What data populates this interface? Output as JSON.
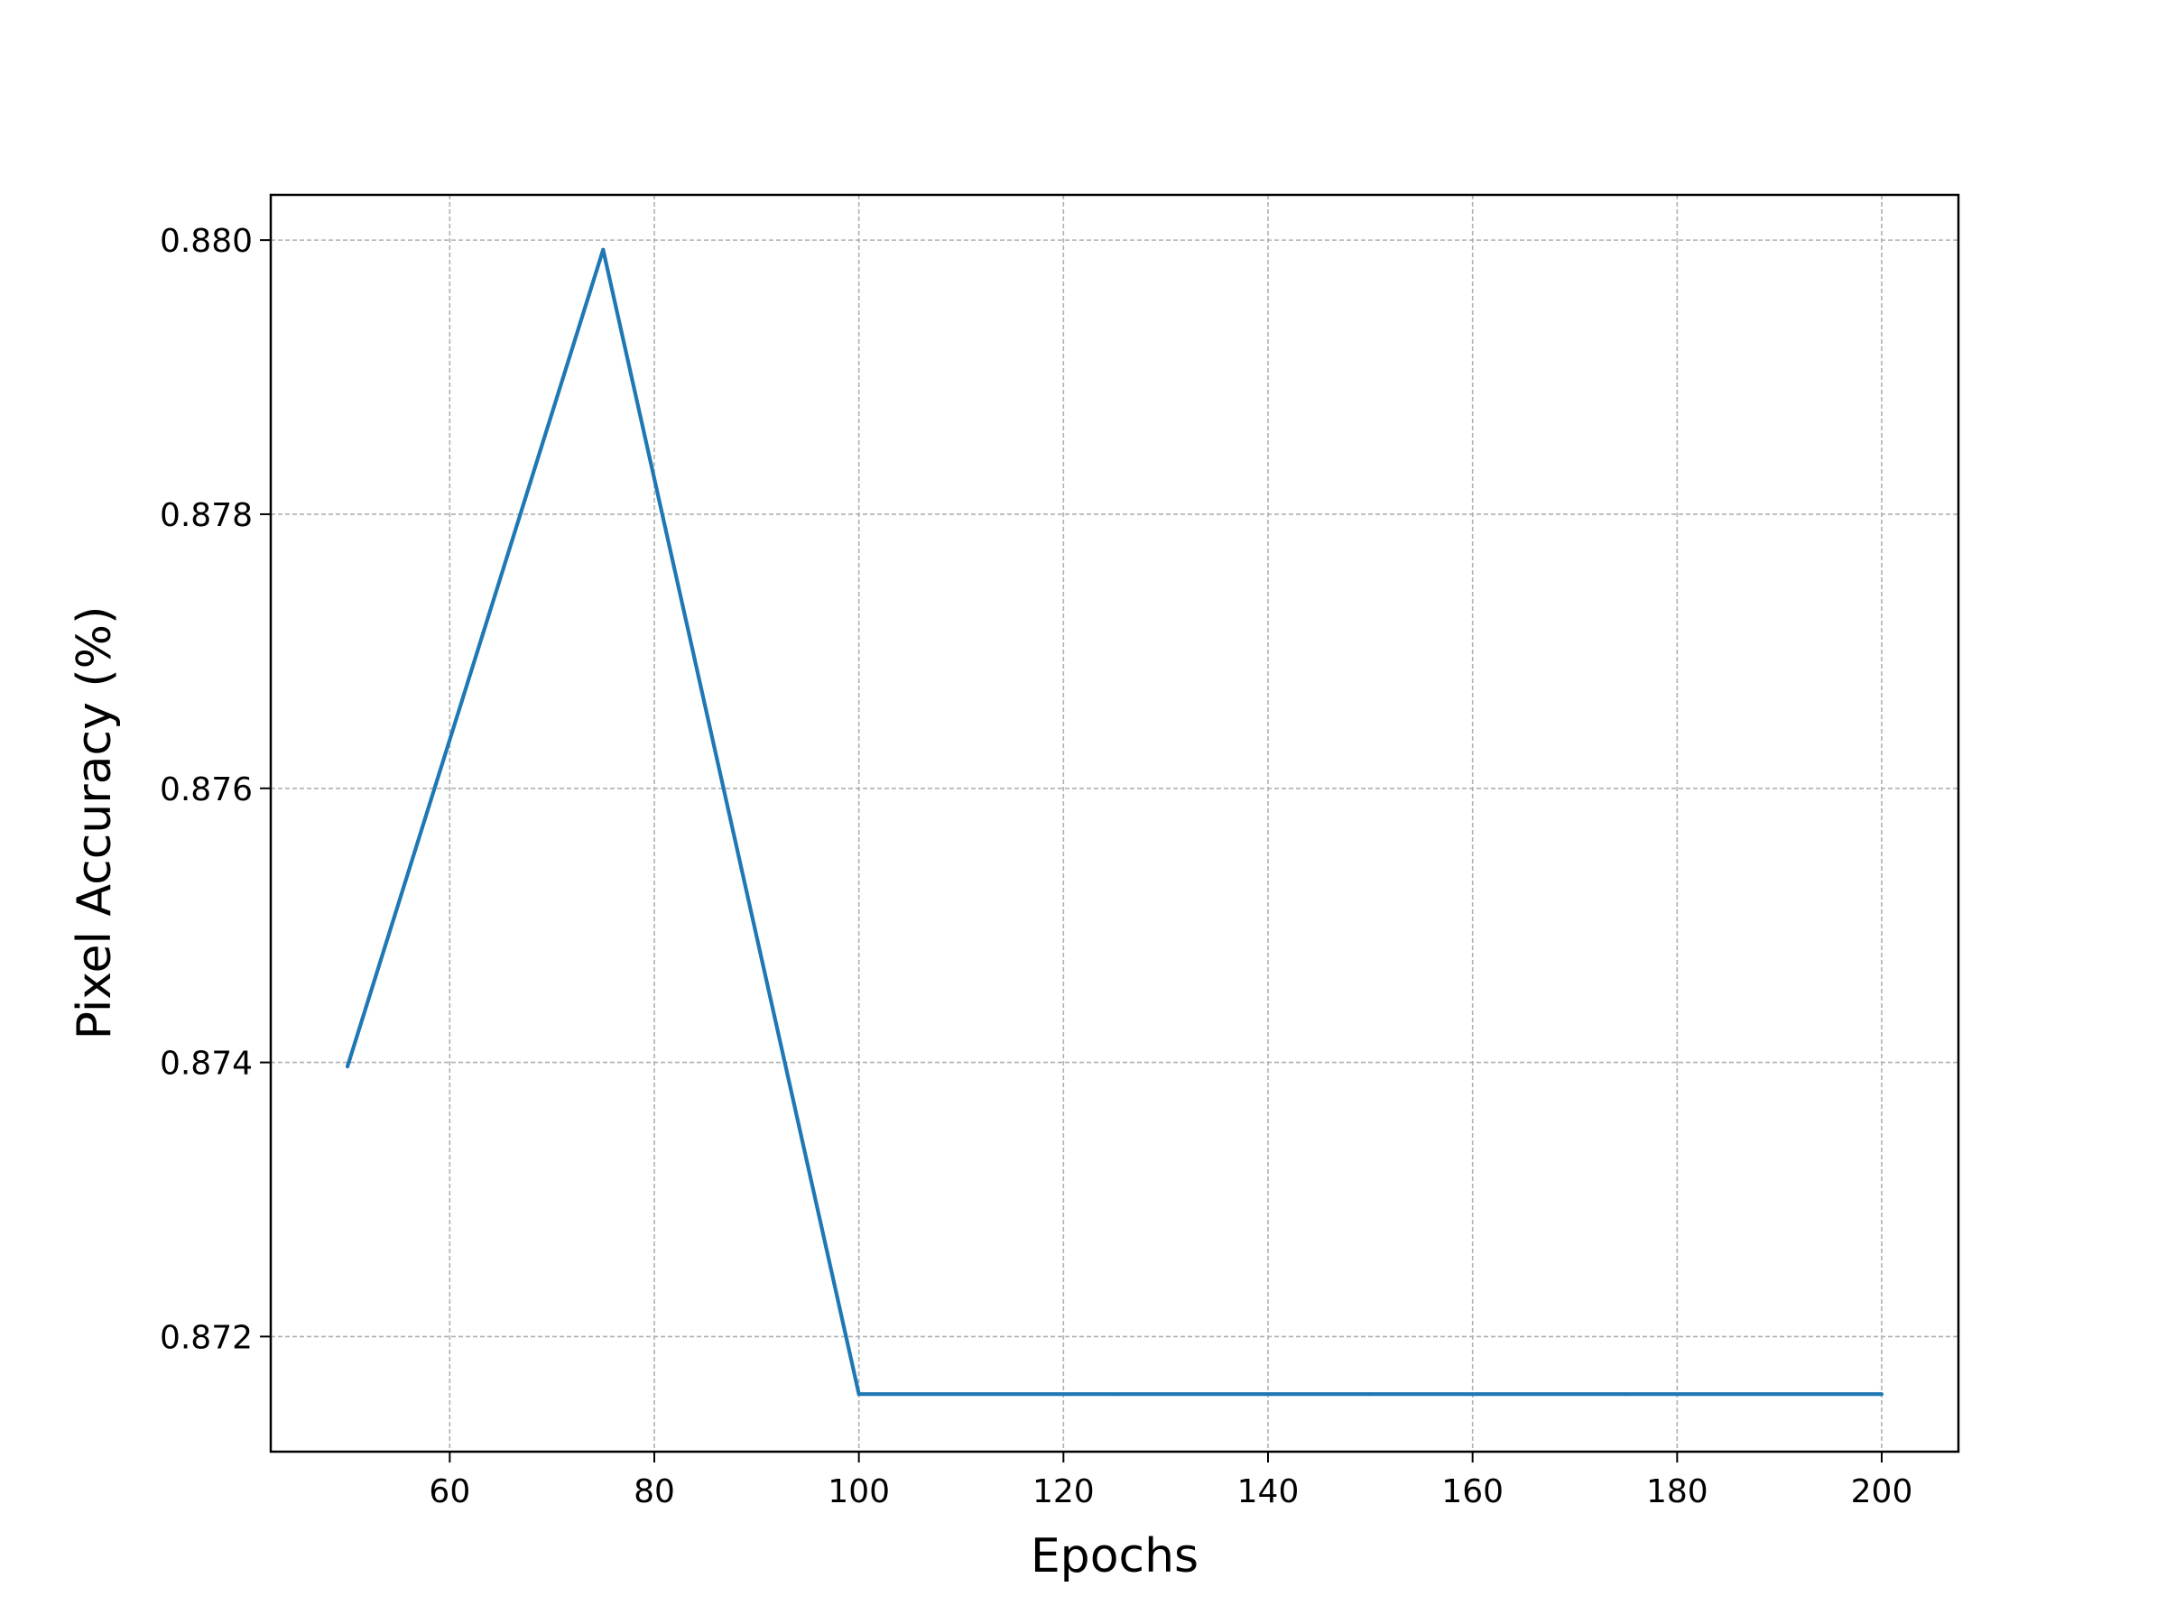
{
  "chart_data": {
    "type": "line",
    "title": "",
    "xlabel": "Epochs",
    "ylabel": "Pixel Accuracy (%)",
    "x": [
      50,
      75,
      100,
      125,
      150,
      175,
      200
    ],
    "series": [
      {
        "values": [
          0.87397,
          0.87993,
          0.87158,
          0.87158,
          0.87158,
          0.87158,
          0.87158
        ]
      }
    ],
    "xlim": [
      42.5,
      207.5
    ],
    "ylim": [
      0.87116,
      0.88033
    ],
    "xticks": [
      60,
      80,
      100,
      120,
      140,
      160,
      180,
      200
    ],
    "xtick_labels": [
      "60",
      "80",
      "100",
      "120",
      "140",
      "160",
      "180",
      "200"
    ],
    "yticks": [
      0.872,
      0.874,
      0.876,
      0.878,
      0.88
    ],
    "ytick_labels": [
      "0.872",
      "0.874",
      "0.876",
      "0.878",
      "0.880"
    ],
    "grid": true,
    "grid_style": "dashed",
    "legend": false,
    "colors": {
      "line": "#1f77b4",
      "grid": "#b0b0b0",
      "axes": "#000000"
    }
  }
}
